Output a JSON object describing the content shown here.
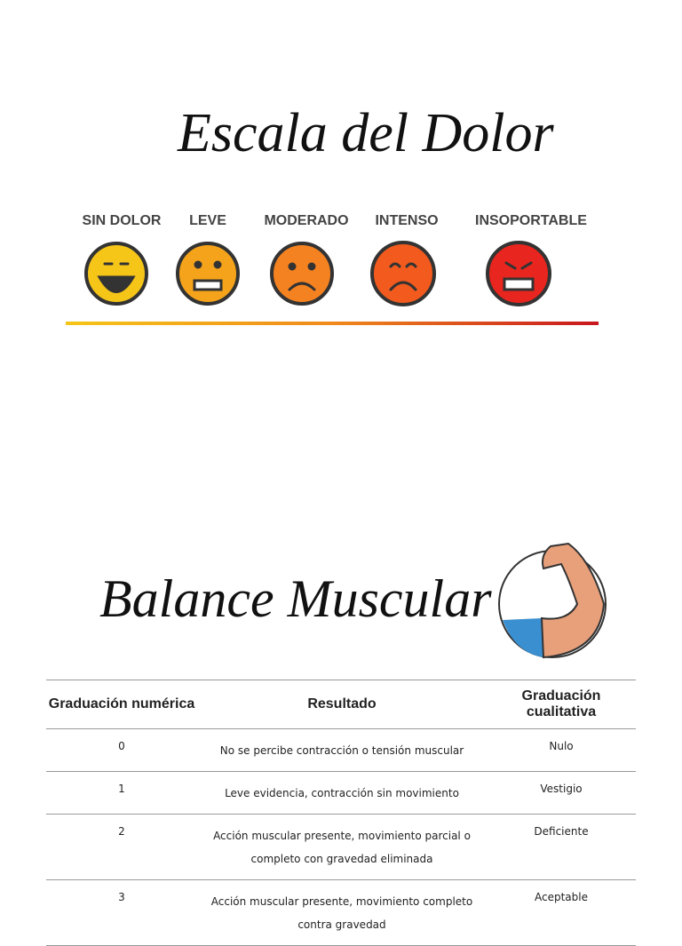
{
  "header": {
    "title": "Escala del Dolor"
  },
  "pain_scale": {
    "levels": [
      "SIN DOLOR",
      "LEVE",
      "MODERADO",
      "INTENSO",
      "INSOPORTABLE"
    ]
  },
  "section": {
    "title": "Balance Muscular"
  },
  "table": {
    "columns": [
      "Graduación numérica",
      "Resultado",
      "Graduación cualitativa"
    ],
    "rows": [
      [
        "0",
        "No se percibe contracción o tensión muscular",
        "Nulo"
      ],
      [
        "1",
        "Leve evidencia, contracción sin movimiento",
        "Vestigio"
      ],
      [
        "2",
        "Acción muscular presente, movimiento parcial o completo con gravedad eliminada",
        "Deficiente"
      ],
      [
        "3",
        "Acción muscular presente, movimiento completo contra gravedad",
        "Aceptable"
      ]
    ]
  }
}
